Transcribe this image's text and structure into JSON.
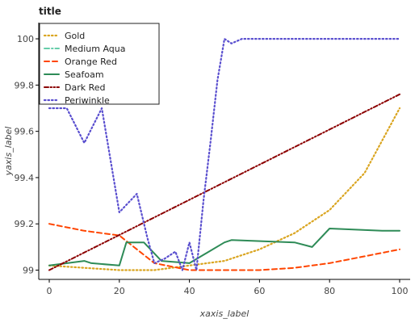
{
  "chart_data": {
    "type": "line",
    "title": "title",
    "xlabel": "xaxis_label",
    "ylabel": "yaxis_label",
    "xlim": [
      -3,
      103
    ],
    "ylim": [
      98.96,
      100.07
    ],
    "xticks": [
      0,
      20,
      40,
      60,
      80,
      100
    ],
    "yticks": [
      99,
      99.2,
      99.4,
      99.6,
      99.8,
      100
    ],
    "grid": false,
    "legend_position": "top-left",
    "series": [
      {
        "name": "Gold",
        "color": "#DAA520",
        "dash": "dotted",
        "x": [
          0,
          10,
          20,
          30,
          40,
          50,
          60,
          70,
          80,
          90,
          100
        ],
        "y": [
          99.02,
          99.01,
          99.0,
          99.0,
          99.02,
          99.04,
          99.09,
          99.16,
          99.26,
          99.42,
          99.7
        ]
      },
      {
        "name": "Medium Aqua",
        "color": "#66CDAA",
        "dash": "dashdot",
        "x": [],
        "y": []
      },
      {
        "name": "Orange Red",
        "color": "#FF4500",
        "dash": "dashed",
        "x": [
          0,
          10,
          20,
          30,
          40,
          50,
          60,
          70,
          80,
          90,
          100
        ],
        "y": [
          99.2,
          99.17,
          99.15,
          99.03,
          99.0,
          99.0,
          99.0,
          99.01,
          99.03,
          99.06,
          99.09
        ]
      },
      {
        "name": "Seafoam",
        "color": "#2E8B57",
        "dash": "solid",
        "x": [
          0,
          10,
          12,
          20,
          22,
          27,
          32,
          40,
          50,
          52,
          70,
          75,
          80,
          95,
          100
        ],
        "y": [
          99.02,
          99.04,
          99.03,
          99.02,
          99.12,
          99.12,
          99.04,
          99.03,
          99.12,
          99.13,
          99.12,
          99.1,
          99.18,
          99.17,
          99.17
        ]
      },
      {
        "name": "Dark Red",
        "color": "#8B0000",
        "dash": "dashdotdot",
        "x": [
          0,
          100
        ],
        "y": [
          99.0,
          99.76
        ]
      },
      {
        "name": "Periwinkle",
        "color": "#5A4FCF",
        "dash": "dotted",
        "x": [
          0,
          5,
          10,
          15,
          20,
          25,
          28,
          30,
          33,
          36,
          38,
          40,
          42,
          44,
          46,
          48,
          50,
          52,
          55,
          60,
          70,
          80,
          90,
          100
        ],
        "y": [
          99.7,
          99.7,
          99.55,
          99.7,
          99.25,
          99.33,
          99.14,
          99.03,
          99.05,
          99.08,
          99.0,
          99.12,
          99.0,
          99.3,
          99.55,
          99.82,
          100.0,
          99.98,
          100.0,
          100.0,
          100.0,
          100.0,
          100.0,
          100.0
        ]
      }
    ]
  }
}
